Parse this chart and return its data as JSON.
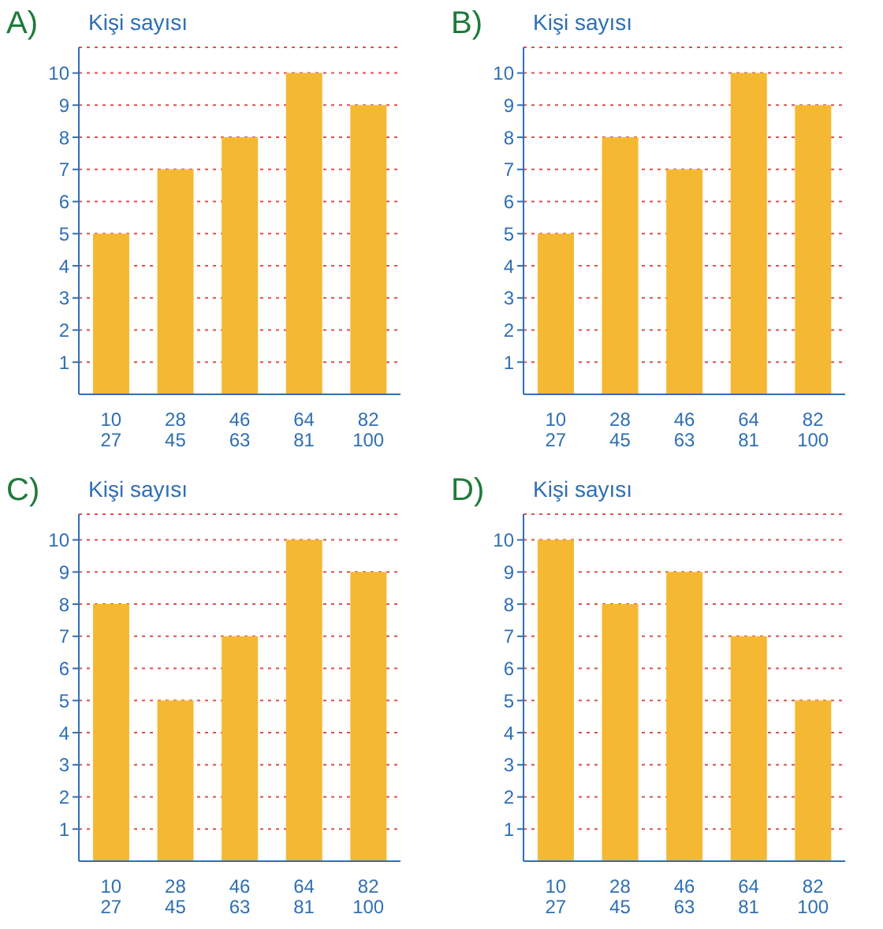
{
  "chart_data": [
    {
      "type": "bar",
      "title": "A)",
      "ylabel": "Kişi sayısı",
      "categories": [
        "10\n27",
        "28\n45",
        "46\n63",
        "64\n81",
        "82\n100"
      ],
      "values": [
        5,
        7,
        8,
        10,
        9
      ],
      "color": "#f5b833",
      "ylim": [
        0,
        10.8
      ],
      "yticks": [
        1,
        2,
        3,
        4,
        5,
        6,
        7,
        8,
        9,
        10
      ],
      "grid": "y"
    },
    {
      "type": "bar",
      "title": "B)",
      "ylabel": "Kişi sayısı",
      "categories": [
        "10\n27",
        "28\n45",
        "46\n63",
        "64\n81",
        "82\n100"
      ],
      "values": [
        5,
        8,
        7,
        10,
        9
      ],
      "color": "#f5b833",
      "ylim": [
        0,
        10.8
      ],
      "yticks": [
        1,
        2,
        3,
        4,
        5,
        6,
        7,
        8,
        9,
        10
      ],
      "grid": "y"
    },
    {
      "type": "bar",
      "title": "C)",
      "ylabel": "Kişi sayısı",
      "categories": [
        "10\n27",
        "28\n45",
        "46\n63",
        "64\n81",
        "82\n100"
      ],
      "values": [
        8,
        5,
        7,
        10,
        9
      ],
      "color": "#f5b833",
      "ylim": [
        0,
        10.8
      ],
      "yticks": [
        1,
        2,
        3,
        4,
        5,
        6,
        7,
        8,
        9,
        10
      ],
      "grid": "y"
    },
    {
      "type": "bar",
      "title": "D)",
      "ylabel": "Kişi sayısı",
      "categories": [
        "10\n27",
        "28\n45",
        "46\n63",
        "64\n81",
        "82\n100"
      ],
      "values": [
        10,
        8,
        9,
        7,
        5
      ],
      "color": "#f5b833",
      "ylim": [
        0,
        10.8
      ],
      "yticks": [
        1,
        2,
        3,
        4,
        5,
        6,
        7,
        8,
        9,
        10
      ],
      "grid": "y"
    }
  ]
}
